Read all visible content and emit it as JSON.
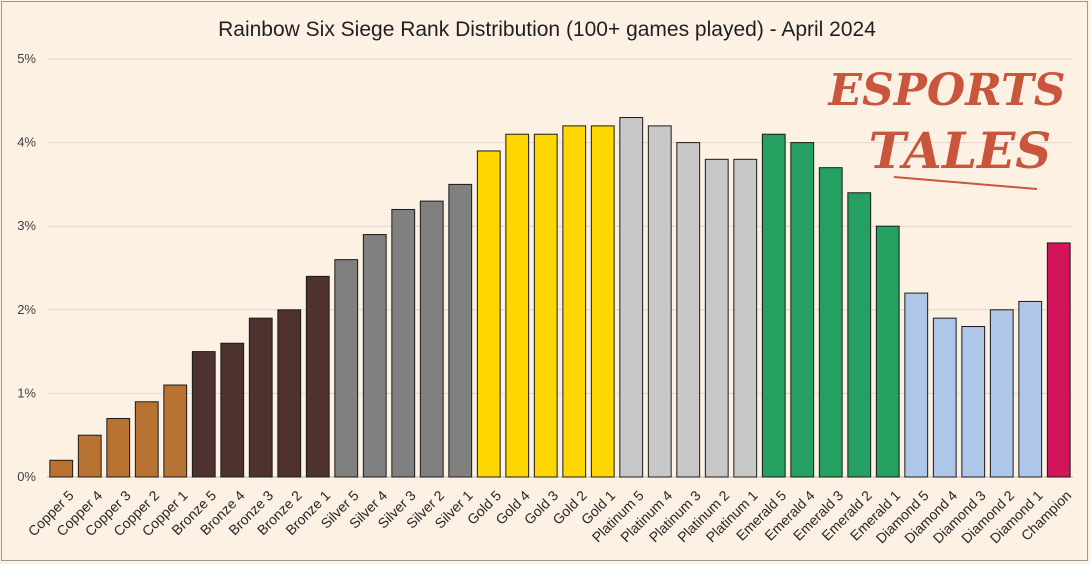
{
  "chart_data": {
    "type": "bar",
    "title": "Rainbow Six Siege Rank Distribution (100+ games played) - April 2024",
    "xlabel": "",
    "ylabel": "",
    "ylim": [
      0,
      5
    ],
    "y_ticks": [
      0,
      1,
      2,
      3,
      4,
      5
    ],
    "y_tick_labels": [
      "0%",
      "1%",
      "2%",
      "3%",
      "4%",
      "5%"
    ],
    "grid": true,
    "categories": [
      "Copper 5",
      "Copper 4",
      "Copper 3",
      "Copper 2",
      "Copper 1",
      "Bronze 5",
      "Bronze 4",
      "Bronze 3",
      "Bronze 2",
      "Bronze 1",
      "Silver 5",
      "Silver 4",
      "Silver 3",
      "Silver 2",
      "Silver 1",
      "Gold 5",
      "Gold 4",
      "Gold 3",
      "Gold 2",
      "Gold 1",
      "Platinum 5",
      "Platinum 4",
      "Platinum 3",
      "Platinum 2",
      "Platinum 1",
      "Emerald 5",
      "Emerald 4",
      "Emerald 3",
      "Emerald 2",
      "Emerald 1",
      "Diamond 5",
      "Diamond 4",
      "Diamond 3",
      "Diamond 2",
      "Diamond 1",
      "Champion"
    ],
    "values": [
      0.2,
      0.5,
      0.7,
      0.9,
      1.1,
      1.5,
      1.6,
      1.9,
      2.0,
      2.4,
      2.6,
      2.9,
      3.2,
      3.3,
      3.5,
      3.9,
      4.1,
      4.1,
      4.2,
      4.2,
      4.3,
      4.2,
      4.0,
      3.8,
      3.8,
      4.1,
      4.0,
      3.7,
      3.4,
      3.0,
      2.2,
      1.9,
      1.8,
      2.0,
      2.1,
      2.8
    ],
    "bar_colors": [
      "#b87333",
      "#b87333",
      "#b87333",
      "#b87333",
      "#b87333",
      "#4e3230",
      "#4e3230",
      "#4e3230",
      "#4e3230",
      "#4e3230",
      "#808080",
      "#808080",
      "#808080",
      "#808080",
      "#808080",
      "#ffd700",
      "#ffd700",
      "#ffd700",
      "#ffd700",
      "#ffd700",
      "#c8c8c8",
      "#c8c8c8",
      "#c8c8c8",
      "#c8c8c8",
      "#c8c8c8",
      "#26a060",
      "#26a060",
      "#26a060",
      "#26a060",
      "#26a060",
      "#aec6e8",
      "#aec6e8",
      "#aec6e8",
      "#aec6e8",
      "#aec6e8",
      "#d4145a"
    ]
  },
  "watermark": {
    "line1": "ESPORTS",
    "line2": "TALES",
    "color": "#c9553d"
  }
}
